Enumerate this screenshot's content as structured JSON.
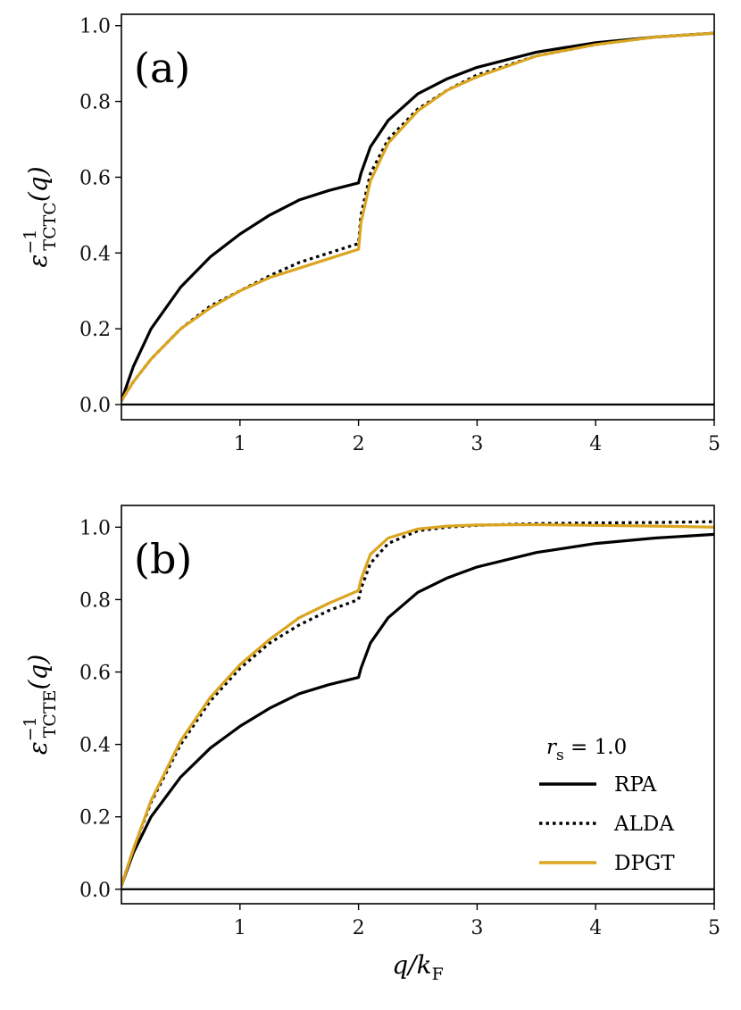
{
  "chart_data": [
    {
      "type": "line",
      "panel_label": "(a)",
      "ylabel": "ε_TCTC^-1(q)",
      "ylabel_base": "ε",
      "ylabel_sup": "−1",
      "ylabel_sub": "TCTC",
      "ylabel_arg": "(q)",
      "xlabel": "",
      "xlim": [
        0,
        5
      ],
      "ylim": [
        -0.04,
        1.03
      ],
      "xticks": [
        "1",
        "2",
        "3",
        "4",
        "5"
      ],
      "yticks": [
        "0.0",
        "0.2",
        "0.4",
        "0.6",
        "0.8",
        "1.0"
      ],
      "hline": 0,
      "series": [
        {
          "name": "RPA",
          "style": "solid",
          "color": "#000000",
          "x": [
            0,
            0.1,
            0.25,
            0.5,
            0.75,
            1.0,
            1.25,
            1.5,
            1.75,
            2.0,
            2.02,
            2.1,
            2.25,
            2.5,
            2.75,
            3.0,
            3.5,
            4.0,
            4.5,
            5.0
          ],
          "y": [
            0.01,
            0.1,
            0.2,
            0.31,
            0.39,
            0.45,
            0.5,
            0.54,
            0.565,
            0.585,
            0.61,
            0.68,
            0.75,
            0.82,
            0.86,
            0.89,
            0.93,
            0.955,
            0.97,
            0.98
          ]
        },
        {
          "name": "ALDA",
          "style": "dotted",
          "color": "#000000",
          "x": [
            0,
            0.1,
            0.25,
            0.5,
            0.75,
            1.0,
            1.25,
            1.5,
            1.75,
            2.0,
            2.02,
            2.1,
            2.25,
            2.5,
            2.75,
            3.0,
            3.5,
            4.0,
            4.5,
            5.0
          ],
          "y": [
            0.01,
            0.06,
            0.12,
            0.2,
            0.26,
            0.3,
            0.34,
            0.375,
            0.4,
            0.425,
            0.5,
            0.61,
            0.7,
            0.78,
            0.83,
            0.87,
            0.92,
            0.95,
            0.97,
            0.98
          ]
        },
        {
          "name": "DPGT",
          "style": "solid",
          "color": "#DAA520",
          "x": [
            0,
            0.1,
            0.25,
            0.5,
            0.75,
            1.0,
            1.25,
            1.5,
            1.75,
            2.0,
            2.02,
            2.1,
            2.25,
            2.5,
            2.75,
            3.0,
            3.5,
            4.0,
            4.5,
            5.0
          ],
          "y": [
            0.01,
            0.06,
            0.12,
            0.2,
            0.255,
            0.3,
            0.335,
            0.36,
            0.385,
            0.41,
            0.48,
            0.59,
            0.69,
            0.775,
            0.83,
            0.865,
            0.92,
            0.95,
            0.97,
            0.98
          ]
        }
      ]
    },
    {
      "type": "line",
      "panel_label": "(b)",
      "ylabel": "ε_TCTE^-1(q)",
      "ylabel_base": "ε",
      "ylabel_sup": "−1",
      "ylabel_sub": "TCTE",
      "ylabel_arg": "(q)",
      "xlabel": "q/k_F",
      "xlabel_base": "q/k",
      "xlabel_sub": "F",
      "xlim": [
        0,
        5
      ],
      "ylim": [
        -0.04,
        1.06
      ],
      "xticks": [
        "1",
        "2",
        "3",
        "4",
        "5"
      ],
      "yticks": [
        "0.0",
        "0.2",
        "0.4",
        "0.6",
        "0.8",
        "1.0"
      ],
      "hline": 0,
      "legend": {
        "title_base": "r",
        "title_sub": "s",
        "title_rest": " = 1.0",
        "placement": "lower-right"
      },
      "series": [
        {
          "name": "RPA",
          "style": "solid",
          "color": "#000000",
          "x": [
            0,
            0.1,
            0.25,
            0.5,
            0.75,
            1.0,
            1.25,
            1.5,
            1.75,
            2.0,
            2.02,
            2.1,
            2.25,
            2.5,
            2.75,
            3.0,
            3.5,
            4.0,
            4.5,
            5.0
          ],
          "y": [
            0.01,
            0.1,
            0.2,
            0.31,
            0.39,
            0.45,
            0.5,
            0.54,
            0.565,
            0.585,
            0.61,
            0.68,
            0.75,
            0.82,
            0.86,
            0.89,
            0.93,
            0.955,
            0.97,
            0.98
          ]
        },
        {
          "name": "ALDA",
          "style": "dotted",
          "color": "#000000",
          "x": [
            0,
            0.1,
            0.25,
            0.5,
            0.75,
            1.0,
            1.25,
            1.5,
            1.75,
            2.0,
            2.02,
            2.1,
            2.25,
            2.5,
            2.75,
            3.0,
            3.5,
            4.0,
            4.5,
            5.0
          ],
          "y": [
            0.01,
            0.11,
            0.24,
            0.4,
            0.52,
            0.61,
            0.68,
            0.73,
            0.77,
            0.8,
            0.83,
            0.9,
            0.955,
            0.99,
            1.0,
            1.005,
            1.01,
            1.012,
            1.013,
            1.015
          ]
        },
        {
          "name": "DPGT",
          "style": "solid",
          "color": "#DAA520",
          "x": [
            0,
            0.1,
            0.25,
            0.5,
            0.75,
            1.0,
            1.25,
            1.5,
            1.75,
            2.0,
            2.02,
            2.1,
            2.25,
            2.5,
            2.75,
            3.0,
            3.5,
            4.0,
            4.5,
            5.0
          ],
          "y": [
            0.01,
            0.11,
            0.245,
            0.41,
            0.53,
            0.62,
            0.69,
            0.75,
            0.79,
            0.825,
            0.855,
            0.925,
            0.97,
            0.995,
            1.003,
            1.006,
            1.007,
            1.005,
            1.003,
            1.0
          ]
        }
      ]
    }
  ]
}
